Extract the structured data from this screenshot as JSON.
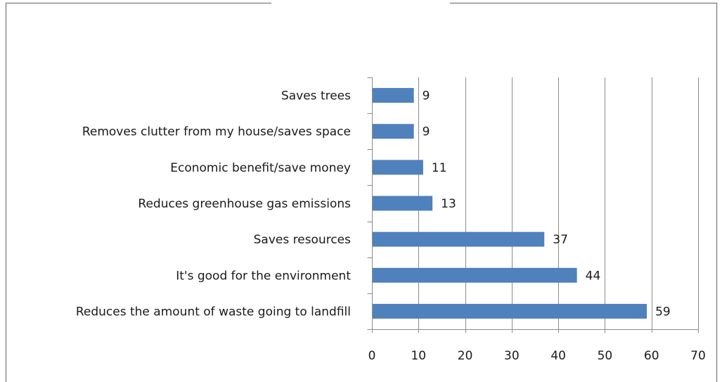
{
  "chart_data": {
    "type": "bar",
    "orientation": "horizontal",
    "title": "",
    "xlabel": "",
    "ylabel": "",
    "categories": [
      "Saves trees",
      "Removes clutter from my house/saves space",
      "Economic benefit/save money",
      "Reduces greenhouse gas emissions",
      "Saves resources",
      "It's good for the environment",
      "Reduces the amount of waste going to landfill"
    ],
    "values": [
      9,
      9,
      11,
      13,
      37,
      44,
      59
    ],
    "xlim": [
      0,
      70
    ],
    "xticks": [
      0,
      10,
      20,
      30,
      40,
      50,
      60,
      70
    ],
    "grid": "vertical",
    "legend": "none",
    "bar_color": "#4f81bd",
    "grid_color": "#8c8c8c",
    "border_color": "#8c8c8c"
  }
}
